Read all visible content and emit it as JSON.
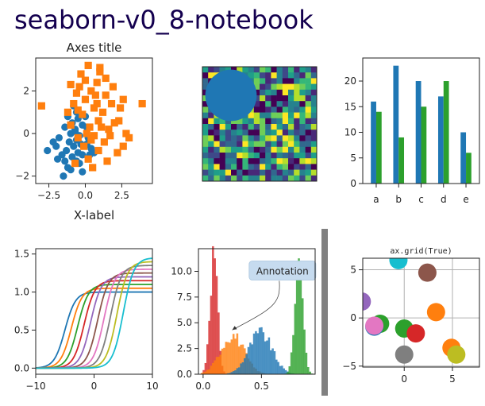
{
  "figure": {
    "suptitle": "seaborn-v0_8-notebook",
    "style_colors": [
      "#1f77b4",
      "#ff7f0e",
      "#2ca02c",
      "#d62728",
      "#9467bd",
      "#8c564b",
      "#e377c2",
      "#7f7f7f",
      "#bcbd22",
      "#17becf"
    ]
  },
  "chart_data": [
    {
      "id": "scatter",
      "type": "scatter",
      "title": "Axes title",
      "xlabel": "X-label",
      "ylabel": "",
      "xlim": [
        -3.4,
        4.6
      ],
      "ylim": [
        -2.35,
        3.55
      ],
      "xticks": [
        -2.5,
        0.0,
        2.5
      ],
      "xtick_labels": [
        "−2.5",
        "0.0",
        "2.5"
      ],
      "yticks": [
        -2,
        0,
        2
      ],
      "ytick_labels": [
        "−2",
        "0",
        "2"
      ],
      "series": [
        {
          "marker": "circle",
          "color": "#1f77b4",
          "points": [
            [
              -0.8,
              1.3
            ],
            [
              -0.6,
              1.0
            ],
            [
              -0.3,
              0.9
            ],
            [
              -1.2,
              0.8
            ],
            [
              -0.5,
              0.7
            ],
            [
              -0.9,
              0.5
            ],
            [
              -0.2,
              0.4
            ],
            [
              -1.4,
              0.3
            ],
            [
              -0.7,
              0.2
            ],
            [
              0.1,
              0.3
            ],
            [
              -1.0,
              0.0
            ],
            [
              -0.4,
              -0.1
            ],
            [
              -1.8,
              -0.2
            ],
            [
              -0.6,
              -0.3
            ],
            [
              0.2,
              -0.2
            ],
            [
              -1.1,
              -0.4
            ],
            [
              -0.3,
              -0.5
            ],
            [
              -2.0,
              -0.6
            ],
            [
              -0.8,
              -0.6
            ],
            [
              0.4,
              -0.7
            ],
            [
              -1.3,
              -0.8
            ],
            [
              -0.5,
              -0.9
            ],
            [
              -2.6,
              -0.8
            ],
            [
              -1.6,
              -1.0
            ],
            [
              -0.2,
              -1.0
            ],
            [
              0.3,
              -1.0
            ],
            [
              -0.9,
              -1.1
            ],
            [
              -1.4,
              -1.3
            ],
            [
              -0.6,
              -1.3
            ],
            [
              -1.0,
              -1.7
            ],
            [
              -1.5,
              -2.0
            ],
            [
              -0.2,
              -1.8
            ],
            [
              -1.2,
              -1.6
            ],
            [
              -0.4,
              -1.4
            ],
            [
              0.6,
              -0.9
            ],
            [
              -1.9,
              -1.2
            ],
            [
              0.1,
              -0.5
            ],
            [
              -0.7,
              0.1
            ],
            [
              -2.2,
              -0.4
            ],
            [
              0.0,
              0.8
            ]
          ]
        },
        {
          "marker": "square",
          "color": "#ff7f0e",
          "points": [
            [
              -3.0,
              1.3
            ],
            [
              0.2,
              3.2
            ],
            [
              1.0,
              2.9
            ],
            [
              -1.0,
              2.3
            ],
            [
              -0.4,
              2.2
            ],
            [
              0.8,
              2.4
            ],
            [
              -0.6,
              1.9
            ],
            [
              0.4,
              2.0
            ],
            [
              1.4,
              1.8
            ],
            [
              0.0,
              1.6
            ],
            [
              1.8,
              1.4
            ],
            [
              -0.8,
              1.4
            ],
            [
              0.6,
              1.2
            ],
            [
              2.4,
              1.2
            ],
            [
              1.2,
              1.0
            ],
            [
              -0.2,
              0.9
            ],
            [
              0.9,
              0.6
            ],
            [
              2.0,
              0.5
            ],
            [
              -1.0,
              0.4
            ],
            [
              0.3,
              0.3
            ],
            [
              1.6,
              0.2
            ],
            [
              2.8,
              0.0
            ],
            [
              0.6,
              -0.1
            ],
            [
              -0.5,
              -0.2
            ],
            [
              1.3,
              -0.4
            ],
            [
              3.0,
              -0.2
            ],
            [
              -0.1,
              -0.6
            ],
            [
              0.9,
              -0.8
            ],
            [
              2.2,
              -0.9
            ],
            [
              0.2,
              -1.2
            ],
            [
              1.5,
              -1.3
            ],
            [
              -0.7,
              -1.4
            ],
            [
              0.5,
              -1.6
            ],
            [
              3.9,
              1.4
            ],
            [
              2.6,
              -0.6
            ],
            [
              1.0,
              3.1
            ],
            [
              -0.3,
              2.8
            ],
            [
              0.7,
              1.8
            ],
            [
              1.9,
              2.2
            ],
            [
              0.1,
              0.0
            ],
            [
              1.1,
              0.3
            ],
            [
              -1.2,
              1.0
            ],
            [
              2.3,
              0.6
            ],
            [
              0.4,
              -0.3
            ],
            [
              1.7,
              -0.1
            ],
            [
              0.8,
              1.4
            ],
            [
              -0.5,
              1.1
            ],
            [
              1.4,
              2.6
            ],
            [
              0.0,
              2.5
            ],
            [
              2.6,
              1.6
            ]
          ]
        }
      ]
    },
    {
      "id": "image",
      "type": "heatmap",
      "grid_size": 20,
      "colormap": "viridis",
      "overlay_circle": {
        "cx": 5,
        "cy": 5,
        "r": 4.5,
        "color": "#1f77b4"
      },
      "seed": 7
    },
    {
      "id": "bars",
      "type": "bar",
      "categories": [
        "a",
        "b",
        "c",
        "d",
        "e"
      ],
      "series": [
        {
          "color": "#1f77b4",
          "values": [
            16,
            23,
            20,
            17,
            10
          ]
        },
        {
          "color": "#2ca02c",
          "values": [
            14,
            9,
            15,
            20,
            6
          ]
        }
      ],
      "ylim": [
        0,
        24.5
      ],
      "yticks": [
        0,
        5,
        10,
        15,
        20
      ],
      "ytick_labels": [
        "0",
        "5",
        "10",
        "15",
        "20"
      ]
    },
    {
      "id": "sigmoids",
      "type": "line",
      "xlim": [
        -10,
        10
      ],
      "ylim": [
        -0.08,
        1.57
      ],
      "xticks": [
        -10,
        0,
        10
      ],
      "xtick_labels": [
        "−10",
        "0",
        "10"
      ],
      "yticks": [
        0.0,
        0.5,
        1.0,
        1.5
      ],
      "ytick_labels": [
        "0.0",
        "0.5",
        "1.0",
        "1.5"
      ],
      "series": [
        {
          "color": "#1f77b4",
          "shift": -5.0,
          "amp": 1.0
        },
        {
          "color": "#ff7f0e",
          "shift": -3.9,
          "amp": 1.05
        },
        {
          "color": "#2ca02c",
          "shift": -2.8,
          "amp": 1.1
        },
        {
          "color": "#d62728",
          "shift": -1.7,
          "amp": 1.15
        },
        {
          "color": "#9467bd",
          "shift": -0.6,
          "amp": 1.2
        },
        {
          "color": "#8c564b",
          "shift": 0.6,
          "amp": 1.25
        },
        {
          "color": "#e377c2",
          "shift": 1.7,
          "amp": 1.3
        },
        {
          "color": "#7f7f7f",
          "shift": 2.8,
          "amp": 1.35
        },
        {
          "color": "#bcbd22",
          "shift": 3.9,
          "amp": 1.4
        },
        {
          "color": "#17becf",
          "shift": 5.0,
          "amp": 1.45
        }
      ]
    },
    {
      "id": "histograms",
      "type": "bar",
      "annotation": "Annotation",
      "annotation_xy": [
        0.25,
        4.3
      ],
      "annotation_text_xy": [
        0.68,
        10.0
      ],
      "xlim": [
        -0.04,
        0.96
      ],
      "ylim": [
        0,
        12.2
      ],
      "xticks": [
        0.0,
        0.5
      ],
      "xtick_labels": [
        "0.0",
        "0.5"
      ],
      "yticks": [
        0.0,
        2.5,
        5.0,
        7.5,
        10.0
      ],
      "ytick_labels": [
        "0.0",
        "2.5",
        "5.0",
        "7.5",
        "10.0"
      ],
      "series": [
        {
          "color": "#d62728",
          "mean": 0.09,
          "sd": 0.033,
          "peak": 11.5
        },
        {
          "color": "#ff7f0e",
          "mean": 0.25,
          "sd": 0.1,
          "peak": 3.8
        },
        {
          "color": "#1f77b4",
          "mean": 0.49,
          "sd": 0.1,
          "peak": 4.0
        },
        {
          "color": "#2ca02c",
          "mean": 0.82,
          "sd": 0.035,
          "peak": 10.3
        }
      ]
    },
    {
      "id": "grid",
      "type": "scatter",
      "title": "ax.grid(True)",
      "xlim": [
        -4.3,
        7.8
      ],
      "ylim": [
        -5.1,
        6.2
      ],
      "xticks": [
        0,
        5
      ],
      "xtick_labels": [
        "0",
        "5"
      ],
      "yticks": [
        -5,
        0,
        5
      ],
      "ytick_labels": [
        "−5",
        "0",
        "5"
      ],
      "points": [
        {
          "x": -0.6,
          "y": 6.0,
          "color": "#17becf"
        },
        {
          "x": 2.4,
          "y": 4.7,
          "color": "#8c564b"
        },
        {
          "x": -4.4,
          "y": 1.7,
          "color": "#9467bd"
        },
        {
          "x": 3.3,
          "y": 0.6,
          "color": "#ff7f0e"
        },
        {
          "x": -2.5,
          "y": -0.6,
          "color": "#2ca02c"
        },
        {
          "x": -3.1,
          "y": -0.9,
          "color": "#1f77b4"
        },
        {
          "x": -3.1,
          "y": -0.8,
          "color": "#e377c2"
        },
        {
          "x": 0.0,
          "y": -1.1,
          "color": "#2ca02c"
        },
        {
          "x": 1.2,
          "y": -1.6,
          "color": "#d62728"
        },
        {
          "x": 0.0,
          "y": -3.8,
          "color": "#7f7f7f"
        },
        {
          "x": 4.9,
          "y": -3.1,
          "color": "#ff7f0e"
        },
        {
          "x": 5.4,
          "y": -3.8,
          "color": "#bcbd22"
        }
      ]
    }
  ]
}
